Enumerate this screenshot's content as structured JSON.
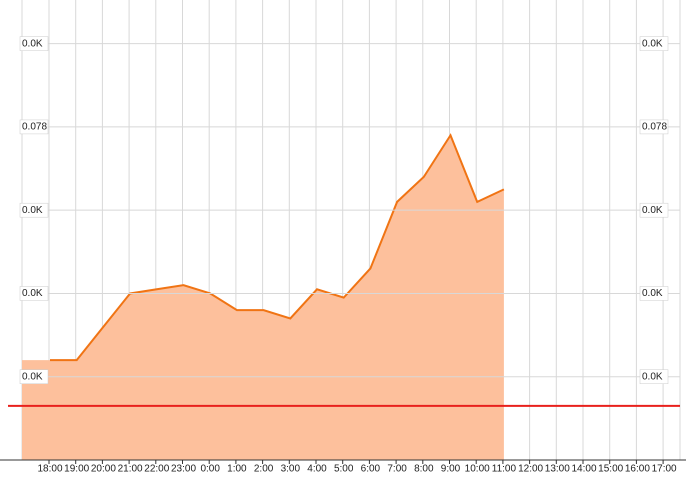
{
  "chart_data": {
    "type": "area",
    "categories": [
      "18:00",
      "19:00",
      "20:00",
      "21:00",
      "22:00",
      "23:00",
      "0:00",
      "1:00",
      "2:00",
      "3:00",
      "4:00",
      "5:00",
      "6:00",
      "7:00",
      "8:00",
      "9:00",
      "10:00",
      "11:00",
      "12:00",
      "13:00",
      "14:00",
      "15:00",
      "16:00",
      "17:00"
    ],
    "series": [
      {
        "color": "#f07414",
        "fill": "#fdc09c",
        "values": [
          0.022,
          0.022,
          0.03,
          0.038,
          0.039,
          0.04,
          0.038,
          0.034,
          0.034,
          0.032,
          0.039,
          0.037,
          0.044,
          0.06,
          0.066,
          0.076,
          0.06,
          0.063,
          null,
          null,
          null,
          null,
          null,
          null
        ]
      }
    ],
    "ylim": [
      -0.002,
      0.108
    ],
    "yticks": [
      {
        "value": 0.018,
        "label": "0.0K"
      },
      {
        "value": 0.038,
        "label": "0.0K"
      },
      {
        "value": 0.058,
        "label": "0.0K"
      },
      {
        "value": 0.078,
        "label": "0.078"
      },
      {
        "value": 0.098,
        "label": "0.0K"
      }
    ],
    "reference_line": {
      "value": 0.011,
      "color": "#e8201c"
    },
    "grid": true
  }
}
